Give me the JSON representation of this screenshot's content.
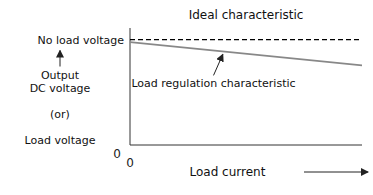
{
  "chart_data": {
    "type": "line",
    "title": "Ideal characteristic",
    "xlabel": "Load current",
    "ylabel": "Output\nDC voltage\n\n(or)\n\nLoad voltage",
    "annotations": [
      "No load voltage",
      "Load regulation characteristic"
    ],
    "x": [
      0.0,
      1.0
    ],
    "series": [
      {
        "color": "#000000",
        "line_style": "dashed",
        "values": [
          0.9,
          0.9
        ]
      },
      {
        "color": "#888888",
        "line_style": "solid",
        "values": [
          0.88,
          0.68
        ]
      }
    ],
    "xlim": [
      0,
      1
    ],
    "ylim": [
      0,
      1
    ],
    "xticks": [
      0
    ],
    "yticks": [
      0
    ],
    "grid": false
  }
}
